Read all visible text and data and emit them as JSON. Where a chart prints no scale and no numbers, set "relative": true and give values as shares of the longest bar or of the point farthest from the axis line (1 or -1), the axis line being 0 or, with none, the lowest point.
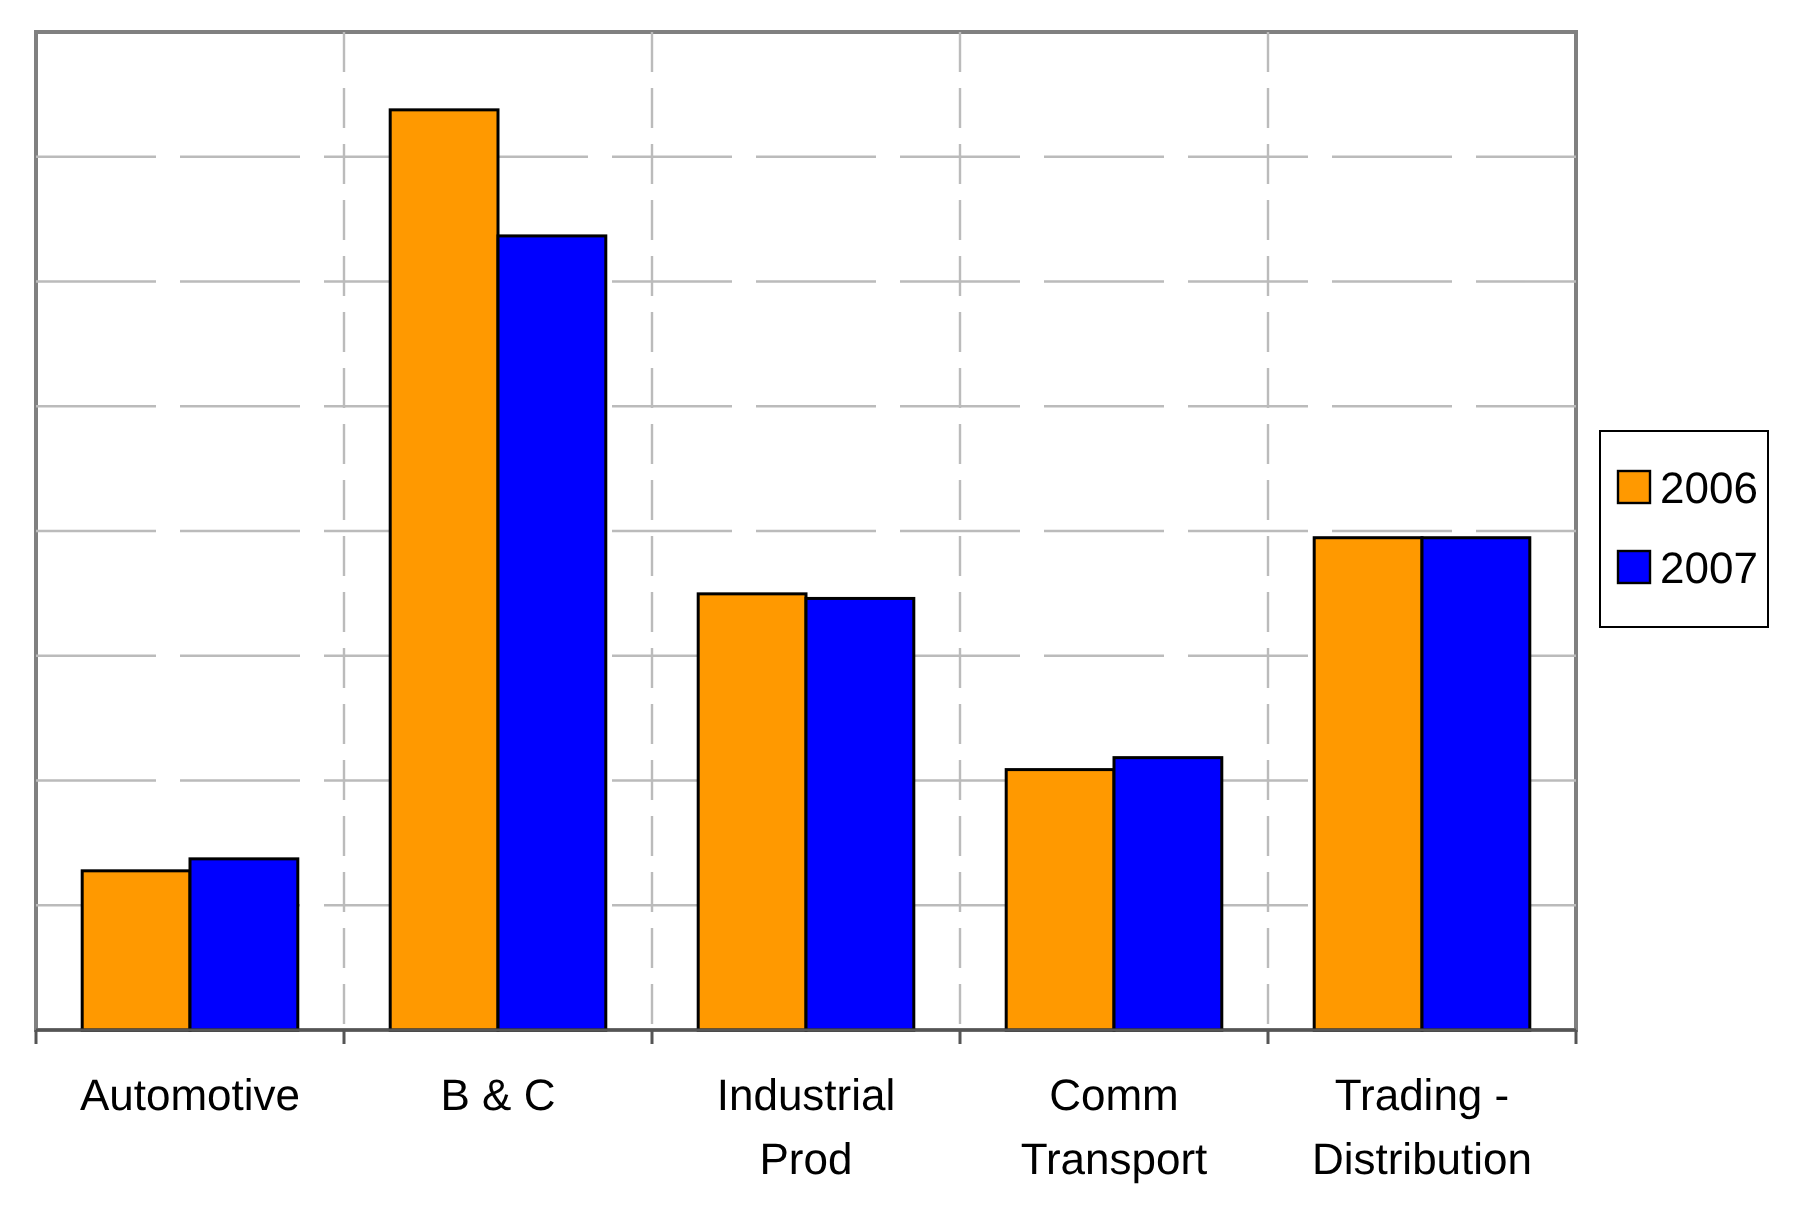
{
  "chart_data": {
    "type": "bar",
    "relative": true,
    "categories": [
      "Automotive",
      "B & C",
      "Industrial Prod",
      "Comm Transport",
      "Trading - Distribution"
    ],
    "series": [
      {
        "name": "2006",
        "color": "#ff9900",
        "values": [
          0.173,
          1,
          0.474,
          0.283,
          0.535
        ]
      },
      {
        "name": "2007",
        "color": "#0000ff",
        "values": [
          0.186,
          0.863,
          0.469,
          0.296,
          0.535
        ]
      }
    ],
    "grid": true,
    "legend": "right"
  }
}
